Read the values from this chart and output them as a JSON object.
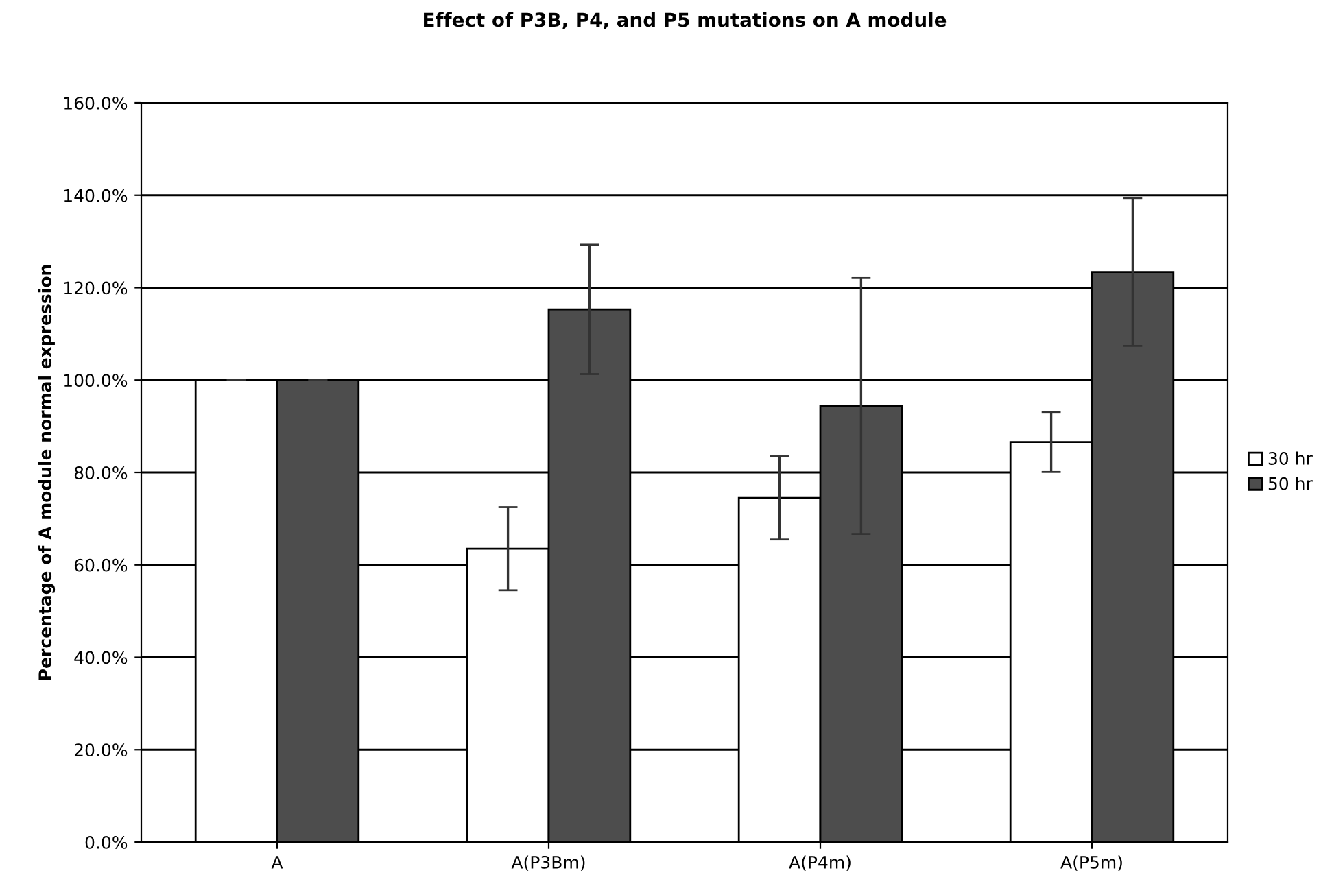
{
  "chart_data": {
    "type": "bar",
    "title": "Effect of P3B, P4, and P5 mutations on A module",
    "ylabel": "Percentage of A module normal expression",
    "categories": [
      "A",
      "A(P3Bm)",
      "A(P4m)",
      "A(P5m)"
    ],
    "series": [
      {
        "name": "30 hr",
        "color": "#ffffff",
        "values": [
          100,
          63.5,
          74.5,
          86.6
        ],
        "errors": [
          0,
          9,
          9,
          6.5
        ]
      },
      {
        "name": "50 hr",
        "color": "#4d4d4d",
        "values": [
          100,
          115.3,
          94.4,
          123.4
        ],
        "errors": [
          0,
          14,
          27.7,
          16
        ]
      }
    ],
    "ylim": [
      0,
      160
    ],
    "yticks": [
      {
        "value": 0,
        "label": "0.0%"
      },
      {
        "value": 20,
        "label": "20.0%"
      },
      {
        "value": 40,
        "label": "40.0%"
      },
      {
        "value": 60,
        "label": "60.0%"
      },
      {
        "value": 80,
        "label": "80.0%"
      },
      {
        "value": 100,
        "label": "100.0%"
      },
      {
        "value": 120,
        "label": "120.0%"
      },
      {
        "value": 140,
        "label": "140.0%"
      },
      {
        "value": 160,
        "label": "160.0%"
      }
    ],
    "grid": "y",
    "legend": "right"
  }
}
